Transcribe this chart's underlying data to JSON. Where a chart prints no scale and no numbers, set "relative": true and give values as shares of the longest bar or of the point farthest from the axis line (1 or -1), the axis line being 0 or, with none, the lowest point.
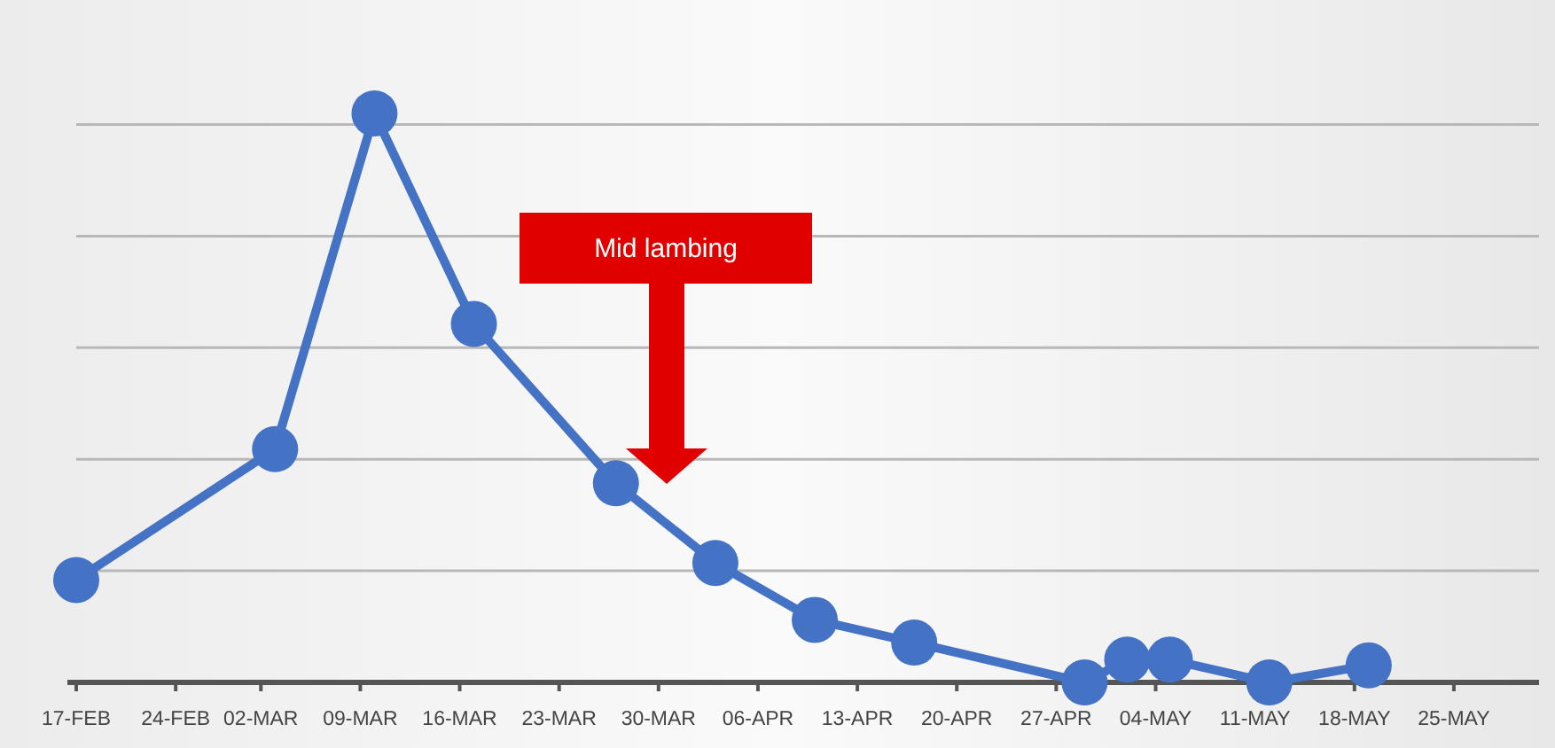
{
  "chart_data": {
    "type": "line",
    "relative": true,
    "x": [
      "--02-17",
      "--03-03",
      "--03-10",
      "--03-17",
      "--03-27",
      "--04-03",
      "--04-10",
      "--04-17",
      "--04-29",
      "--05-02",
      "--05-05",
      "--05-12",
      "--05-19"
    ],
    "series": [
      {
        "color": "#4472c4",
        "values": [
          0.18,
          0.41,
          1,
          0.63,
          0.35,
          0.21,
          0.11,
          0.07,
          0,
          0.04,
          0.04,
          0,
          0.03
        ]
      }
    ],
    "xlim": [
      "--02-17",
      "--05-31"
    ],
    "xticks": [
      {
        "value": "--02-17",
        "label": "17-FEB"
      },
      {
        "value": "--02-24",
        "label": "24-FEB"
      },
      {
        "value": "--03-02",
        "label": "02-MAR"
      },
      {
        "value": "--03-09",
        "label": "09-MAR"
      },
      {
        "value": "--03-16",
        "label": "16-MAR"
      },
      {
        "value": "--03-23",
        "label": "23-MAR"
      },
      {
        "value": "--03-30",
        "label": "30-MAR"
      },
      {
        "value": "--04-06",
        "label": "06-APR"
      },
      {
        "value": "--04-13",
        "label": "13-APR"
      },
      {
        "value": "--04-20",
        "label": "20-APR"
      },
      {
        "value": "--04-27",
        "label": "27-APR"
      },
      {
        "value": "--05-04",
        "label": "04-MAY"
      },
      {
        "value": "--05-11",
        "label": "11-MAY"
      },
      {
        "value": "--05-18",
        "label": "18-MAY"
      },
      {
        "value": "--05-25",
        "label": "25-MAY"
      }
    ],
    "annotations": [
      "Mid lambing"
    ],
    "grid": "y",
    "marker": "circle",
    "line_style": "solid"
  }
}
